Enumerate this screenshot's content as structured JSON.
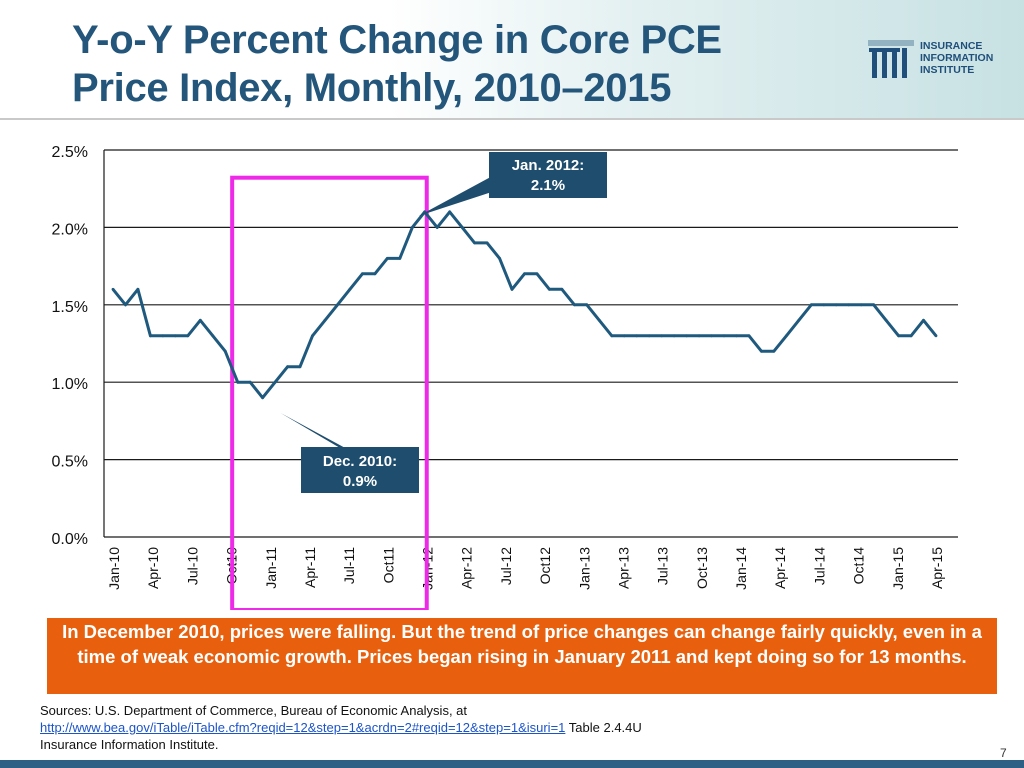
{
  "title": {
    "line1": "Y-o-Y Percent Change in Core PCE",
    "line2": "Price Index, Monthly, 2010–2015"
  },
  "logo": {
    "line1": "INSURANCE",
    "line2": "INFORMATION",
    "line3": "INSTITUTE"
  },
  "colors": {
    "title": "#23567a",
    "line": "#1f5a7e",
    "highlight": "#ee2ae8",
    "callout_bg": "#e8600e",
    "annotation_bg": "#1f4d6e"
  },
  "chart_data": {
    "type": "line",
    "title": "Y-o-Y Percent Change in Core PCE Price Index, Monthly, 2010–2015",
    "xlabel": "",
    "ylabel": "",
    "ylim": [
      0,
      2.5
    ],
    "grid": true,
    "y_ticks": [
      "0.0%",
      "0.5%",
      "1.0%",
      "1.5%",
      "2.0%",
      "2.5%"
    ],
    "x_ticks": [
      "Jan-10",
      "Apr-10",
      "Jul-10",
      "Oct10",
      "Jan-11",
      "Apr-11",
      "Jul-11",
      "Oct11",
      "Jan-12",
      "Apr-12",
      "Jul-12",
      "Oct12",
      "Jan-13",
      "Apr-13",
      "Jul-13",
      "Oct-13",
      "Jan-14",
      "Apr-14",
      "Jul-14",
      "Oct14",
      "Jan-15",
      "Apr-15"
    ],
    "series": [
      {
        "name": "Core PCE Y-o-Y % change",
        "values": [
          1.6,
          1.5,
          1.6,
          1.3,
          1.3,
          1.3,
          1.3,
          1.4,
          1.3,
          1.2,
          1.0,
          1.0,
          0.9,
          1.0,
          1.1,
          1.1,
          1.3,
          1.4,
          1.5,
          1.6,
          1.7,
          1.7,
          1.8,
          1.8,
          2.0,
          2.1,
          2.0,
          2.1,
          2.0,
          1.9,
          1.9,
          1.8,
          1.6,
          1.7,
          1.7,
          1.6,
          1.6,
          1.5,
          1.5,
          1.4,
          1.3,
          1.3,
          1.3,
          1.3,
          1.3,
          1.3,
          1.3,
          1.3,
          1.3,
          1.3,
          1.3,
          1.3,
          1.2,
          1.2,
          1.3,
          1.4,
          1.5,
          1.5,
          1.5,
          1.5,
          1.5,
          1.5,
          1.4,
          1.3,
          1.3,
          1.4,
          1.3
        ]
      }
    ],
    "annotations": [
      {
        "label_line1": "Jan. 2012:",
        "label_line2": "2.1%",
        "month_index": 25
      },
      {
        "label_line1": "Dec. 2010:",
        "label_line2": "0.9%",
        "month_index": 12
      }
    ],
    "highlight_range": [
      "Dec-10",
      "Jan-12"
    ]
  },
  "callout": {
    "text": "In December 2010, prices were falling. But the trend of price changes can change fairly quickly, even in a time of weak economic growth. Prices began rising in January 2011 and kept doing so for 13 months."
  },
  "sources": {
    "line1": "Sources: U.S. Department of Commerce, Bureau of Economic Analysis, at",
    "link": "http://www.bea.gov/iTable/iTable.cfm?reqid=12&step=1&acrdn=2#reqid=12&step=1&isuri=1",
    "link_suffix": " Table 2.4.4U",
    "line3": "Insurance Information Institute."
  },
  "page_number": "7"
}
